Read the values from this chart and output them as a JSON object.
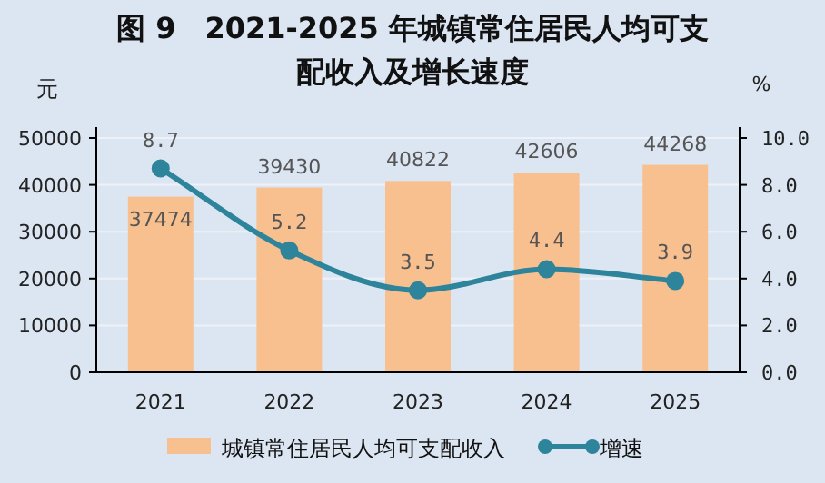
{
  "chart_data": {
    "type": "bar",
    "title": "图 9　2021-2025 年城镇常住居民人均可支配收入及增长速度",
    "ylabel": "元",
    "y2label": "%",
    "categories": [
      "2021",
      "2022",
      "2023",
      "2024",
      "2025"
    ],
    "series": [
      {
        "name": "城镇常住居民人均可支配收入",
        "color": "#f8c08e",
        "values": [
          37474,
          39430,
          40822,
          42606,
          44268
        ]
      },
      {
        "name": "增速",
        "type": "line",
        "axis": "y2",
        "color": "#2e849a",
        "marker": "circle",
        "values": [
          8.7,
          5.2,
          3.5,
          4.4,
          3.9
        ]
      }
    ],
    "ylim": [
      0,
      50000
    ],
    "yticks": [
      0,
      10000,
      20000,
      30000,
      40000,
      50000
    ],
    "y2lim": [
      0,
      10
    ],
    "y2ticks": [
      {
        "value": 0,
        "label": "0.0"
      },
      {
        "value": 2,
        "label": "2.0"
      },
      {
        "value": 4,
        "label": "4.0"
      },
      {
        "value": 6,
        "label": "6.0"
      },
      {
        "value": 8,
        "label": "8.0"
      },
      {
        "value": 10,
        "label": "10.0"
      }
    ],
    "grid": "y",
    "legend": "bottom",
    "data_labels": true
  }
}
